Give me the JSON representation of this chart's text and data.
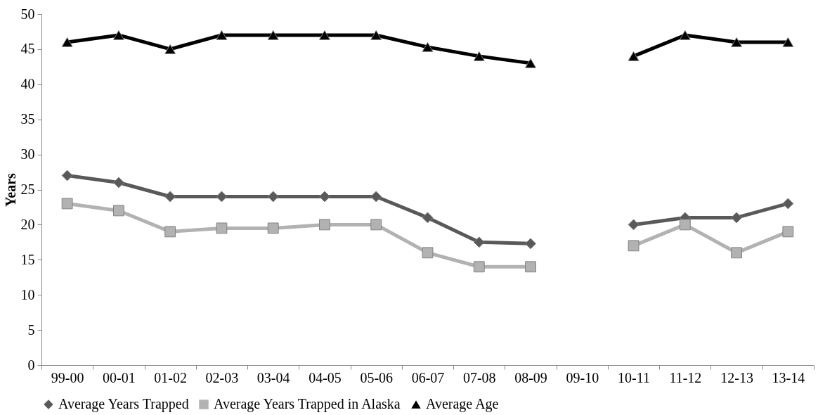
{
  "chart_data": {
    "type": "line",
    "ylabel": "Years",
    "categories": [
      "99-00",
      "00-01",
      "01-02",
      "02-03",
      "03-04",
      "04-05",
      "05-06",
      "06-07",
      "07-08",
      "08-09",
      "09-10",
      "10-11",
      "11-12",
      "12-13",
      "13-14"
    ],
    "series": [
      {
        "name": "Average Years Trapped",
        "color": "#595959",
        "marker": "diamond",
        "values": [
          27,
          26,
          24,
          24,
          24,
          24,
          24,
          21,
          17.5,
          17.3,
          null,
          20,
          21,
          21,
          23
        ]
      },
      {
        "name": "Average Years Trapped in Alaska",
        "color": "#b2b2b2",
        "marker": "square",
        "values": [
          23,
          22,
          19,
          19.5,
          19.5,
          20,
          20,
          16,
          14,
          14,
          null,
          17,
          20,
          16,
          19
        ]
      },
      {
        "name": "Average Age",
        "color": "#000000",
        "marker": "triangle",
        "values": [
          46,
          47,
          45,
          47,
          47,
          47,
          47,
          45.3,
          44,
          43,
          null,
          44,
          47,
          46,
          46
        ]
      }
    ],
    "ylim": [
      0,
      50
    ],
    "yticks": [
      0,
      5,
      10,
      15,
      20,
      25,
      30,
      35,
      40,
      45,
      50
    ],
    "grid": false,
    "legend": "bottom",
    "line_style": "solid"
  }
}
